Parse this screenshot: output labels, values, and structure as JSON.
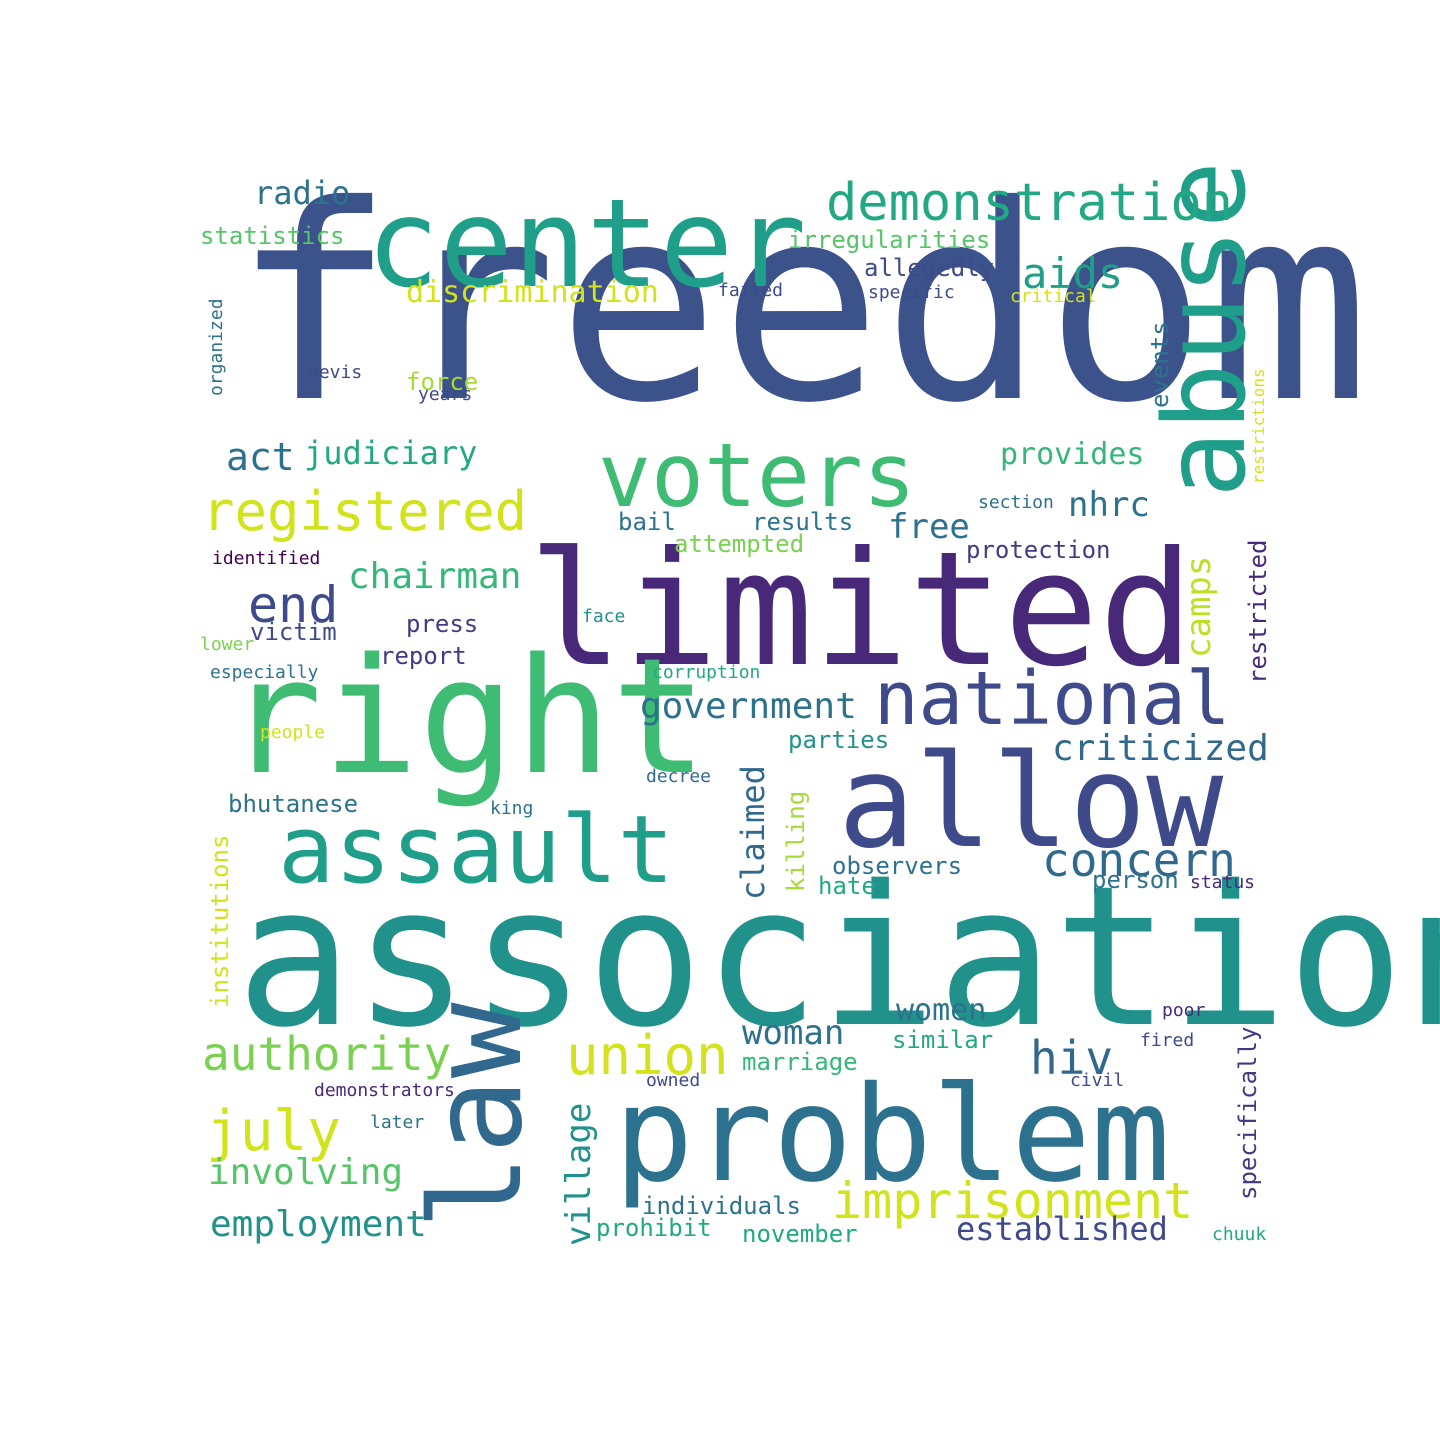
{
  "words": [
    {
      "text": "freedom",
      "color": "#3b528b",
      "vertical": false
    },
    {
      "text": "association",
      "color": "#21918c",
      "vertical": false
    },
    {
      "text": "limited",
      "color": "#482878",
      "vertical": false
    },
    {
      "text": "right",
      "color": "#3fbc73",
      "vertical": false
    },
    {
      "text": "center",
      "color": "#1f9e89",
      "vertical": false
    },
    {
      "text": "allow",
      "color": "#3e4a89",
      "vertical": false
    },
    {
      "text": "problem",
      "color": "#2c728e",
      "vertical": false
    },
    {
      "text": "law",
      "color": "#31688e",
      "vertical": true
    },
    {
      "text": "abuse",
      "color": "#1f9e89",
      "vertical": true
    },
    {
      "text": "assault",
      "color": "#1f9e89",
      "vertical": false
    },
    {
      "text": "voters",
      "color": "#3fbc73",
      "vertical": false
    },
    {
      "text": "national",
      "color": "#3e4a89",
      "vertical": false
    },
    {
      "text": "demonstration",
      "color": "#22a884",
      "vertical": false
    },
    {
      "text": "registered",
      "color": "#d2e21b",
      "vertical": false
    },
    {
      "text": "imprisonment",
      "color": "#d2e21b",
      "vertical": false
    },
    {
      "text": "authority",
      "color": "#7ad151",
      "vertical": false
    },
    {
      "text": "concern",
      "color": "#31688e",
      "vertical": false
    },
    {
      "text": "union",
      "color": "#d2e21b",
      "vertical": false
    },
    {
      "text": "july",
      "color": "#d2e21b",
      "vertical": false
    },
    {
      "text": "aids",
      "color": "#1f9e89",
      "vertical": false
    },
    {
      "text": "end",
      "color": "#3e4a89",
      "vertical": false
    },
    {
      "text": "hiv",
      "color": "#31688e",
      "vertical": false
    },
    {
      "text": "radio",
      "color": "#2c728e",
      "vertical": false
    },
    {
      "text": "chairman",
      "color": "#35b779",
      "vertical": false
    },
    {
      "text": "government",
      "color": "#2c728e",
      "vertical": false
    },
    {
      "text": "criticized",
      "color": "#31688e",
      "vertical": false
    },
    {
      "text": "involving",
      "color": "#54c568",
      "vertical": false
    },
    {
      "text": "employment",
      "color": "#21918c",
      "vertical": false
    },
    {
      "text": "established",
      "color": "#3e4a89",
      "vertical": false
    },
    {
      "text": "village",
      "color": "#21918c",
      "vertical": true
    },
    {
      "text": "woman",
      "color": "#2c728e",
      "vertical": false
    },
    {
      "text": "act",
      "color": "#2c728e",
      "vertical": false
    },
    {
      "text": "judiciary",
      "color": "#22a884",
      "vertical": false
    },
    {
      "text": "free",
      "color": "#2c728e",
      "vertical": false
    },
    {
      "text": "nhrc",
      "color": "#2c728e",
      "vertical": false
    },
    {
      "text": "camps",
      "color": "#bddf26",
      "vertical": true
    },
    {
      "text": "claimed",
      "color": "#31688e",
      "vertical": true
    },
    {
      "text": "discrimination",
      "color": "#d2e21b",
      "vertical": false
    },
    {
      "text": "provides",
      "color": "#35b779",
      "vertical": false
    },
    {
      "text": "women",
      "color": "#2c728e",
      "vertical": false
    },
    {
      "text": "statistics",
      "color": "#54c568",
      "vertical": false
    },
    {
      "text": "irregularities",
      "color": "#54c568",
      "vertical": false
    },
    {
      "text": "allegedly",
      "color": "#3e4a89",
      "vertical": false
    },
    {
      "text": "victim",
      "color": "#3e4a89",
      "vertical": false
    },
    {
      "text": "press",
      "color": "#443983",
      "vertical": false
    },
    {
      "text": "report",
      "color": "#443983",
      "vertical": false
    },
    {
      "text": "parties",
      "color": "#21918c",
      "vertical": false
    },
    {
      "text": "bhutanese",
      "color": "#2c728e",
      "vertical": false
    },
    {
      "text": "observers",
      "color": "#2c728e",
      "vertical": false
    },
    {
      "text": "marriage",
      "color": "#35b779",
      "vertical": false
    },
    {
      "text": "similar",
      "color": "#22a884",
      "vertical": false
    },
    {
      "text": "november",
      "color": "#22a884",
      "vertical": false
    },
    {
      "text": "prohibit",
      "color": "#22a884",
      "vertical": false
    },
    {
      "text": "individuals",
      "color": "#2c728e",
      "vertical": false
    },
    {
      "text": "protection",
      "color": "#443983",
      "vertical": false
    },
    {
      "text": "attempted",
      "color": "#7ad151",
      "vertical": false
    },
    {
      "text": "results",
      "color": "#2c728e",
      "vertical": false
    },
    {
      "text": "bail",
      "color": "#2c728e",
      "vertical": false
    },
    {
      "text": "force",
      "color": "#a5db36",
      "vertical": false
    },
    {
      "text": "events",
      "color": "#2c728e",
      "vertical": true
    },
    {
      "text": "restricted",
      "color": "#482878",
      "vertical": true
    },
    {
      "text": "institutions",
      "color": "#d2e21b",
      "vertical": true
    },
    {
      "text": "specifically",
      "color": "#443983",
      "vertical": true
    },
    {
      "text": "killing",
      "color": "#a5db36",
      "vertical": true
    },
    {
      "text": "hate",
      "color": "#22a884",
      "vertical": false
    },
    {
      "text": "person",
      "color": "#2c728e",
      "vertical": false
    },
    {
      "text": "status",
      "color": "#482878",
      "vertical": false
    },
    {
      "text": "identified",
      "color": "#440154",
      "vertical": false
    },
    {
      "text": "especially",
      "color": "#2c728e",
      "vertical": false
    },
    {
      "text": "organized",
      "color": "#2c728e",
      "vertical": true
    },
    {
      "text": "restrictions",
      "color": "#d2e21b",
      "vertical": true
    },
    {
      "text": "section",
      "color": "#2c728e",
      "vertical": false
    },
    {
      "text": "failed",
      "color": "#3e4a89",
      "vertical": false
    },
    {
      "text": "specific",
      "color": "#3e4a89",
      "vertical": false
    },
    {
      "text": "critical",
      "color": "#d2e21b",
      "vertical": false
    },
    {
      "text": "nevis",
      "color": "#3e4a89",
      "vertical": false
    },
    {
      "text": "years",
      "color": "#3e4a89",
      "vertical": false
    },
    {
      "text": "face",
      "color": "#21918c",
      "vertical": false
    },
    {
      "text": "lower",
      "color": "#7ad151",
      "vertical": false
    },
    {
      "text": "corruption",
      "color": "#22a884",
      "vertical": false
    },
    {
      "text": "people",
      "color": "#d2e21b",
      "vertical": false
    },
    {
      "text": "decree",
      "color": "#31688e",
      "vertical": false
    },
    {
      "text": "king",
      "color": "#2c728e",
      "vertical": false
    },
    {
      "text": "demonstrators",
      "color": "#482878",
      "vertical": false
    },
    {
      "text": "owned",
      "color": "#3e4a89",
      "vertical": false
    },
    {
      "text": "civil",
      "color": "#3e4a89",
      "vertical": false
    },
    {
      "text": "poor",
      "color": "#482878",
      "vertical": false
    },
    {
      "text": "fired",
      "color": "#3e4a89",
      "vertical": false
    },
    {
      "text": "later",
      "color": "#2c728e",
      "vertical": false
    },
    {
      "text": "chuuk",
      "color": "#22a884",
      "vertical": false
    }
  ]
}
